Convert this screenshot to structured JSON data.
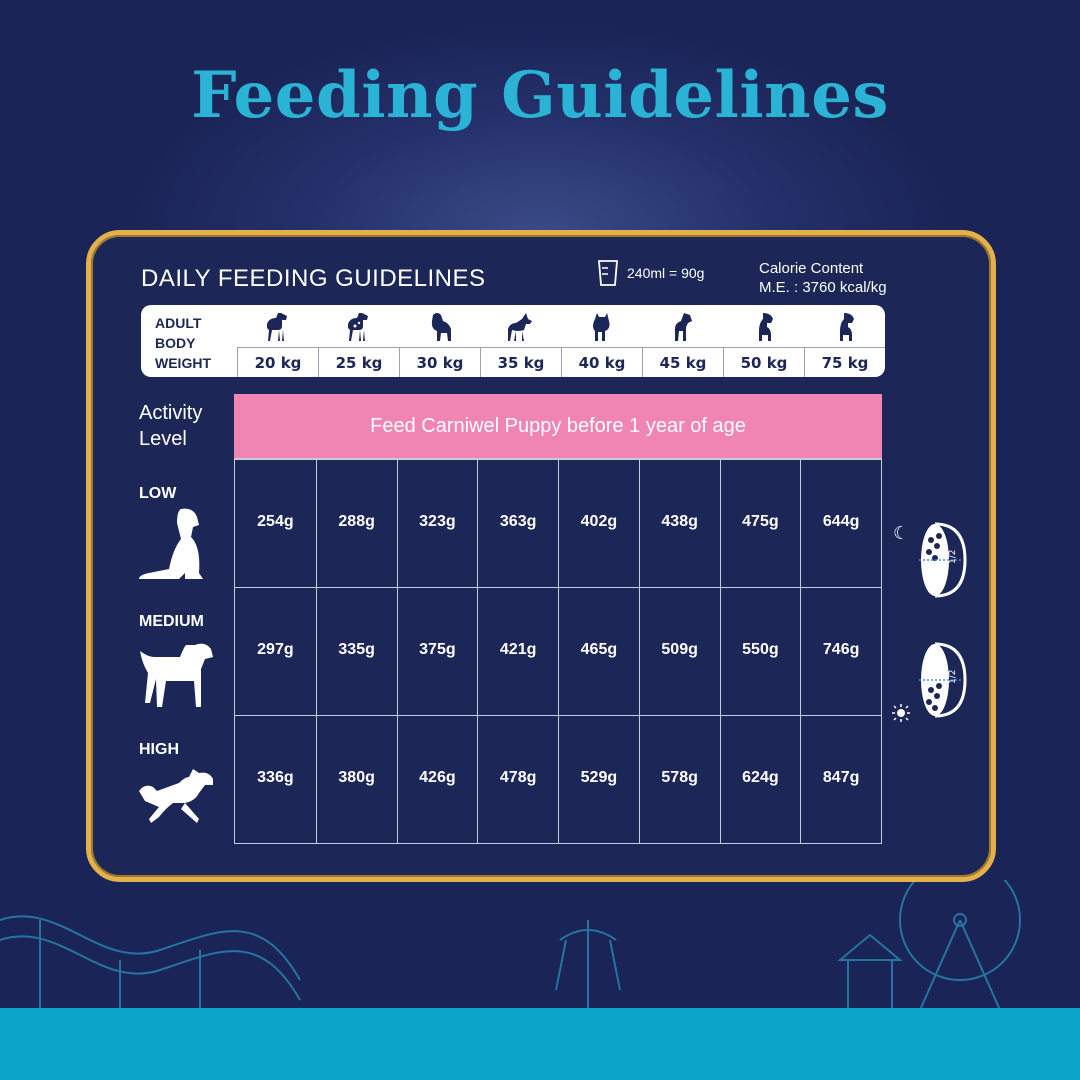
{
  "title": "Feeding Guidelines",
  "card": {
    "heading": "DAILY FEEDING GUIDELINES",
    "measure": "240ml = 90g",
    "calorie_line1": "Calorie Content",
    "calorie_line2": "M.E. : 3760 kcal/kg"
  },
  "weights": {
    "label_lines": [
      "ADULT",
      "BODY",
      "WEIGHT"
    ],
    "values": [
      "20 kg",
      "25 kg",
      "30 kg",
      "35 kg",
      "40 kg",
      "45 kg",
      "50 kg",
      "75 kg"
    ]
  },
  "activity_label": [
    "Activity",
    "Level"
  ],
  "banner": "Feed Carniwel Puppy before 1 year of age",
  "levels": [
    {
      "name": "LOW",
      "values": [
        "254g",
        "288g",
        "323g",
        "363g",
        "402g",
        "438g",
        "475g",
        "644g"
      ]
    },
    {
      "name": "MEDIUM",
      "values": [
        "297g",
        "335g",
        "375g",
        "421g",
        "465g",
        "509g",
        "550g",
        "746g"
      ]
    },
    {
      "name": "HIGH",
      "values": [
        "336g",
        "380g",
        "426g",
        "478g",
        "529g",
        "578g",
        "624g",
        "847g"
      ]
    }
  ],
  "bowl_fraction": "1/2",
  "icons": {
    "cup": "measuring-cup-icon",
    "dog": "dog-silhouette-icon",
    "bowl": "food-bowl-icon",
    "moon": "moon-icon",
    "sun": "sun-icon"
  },
  "colors": {
    "background": "#1c2657",
    "title": "#2bb3d6",
    "frame": "#e3b04b",
    "banner": "#f084b3",
    "strip": "#0aa4c8"
  }
}
